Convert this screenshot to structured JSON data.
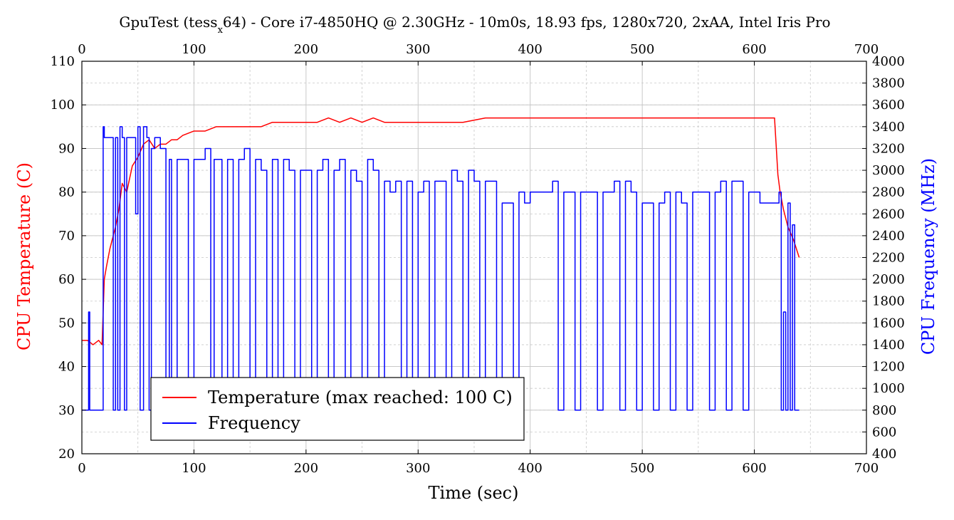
{
  "chart_data": {
    "type": "line",
    "title": "GpuTest (tessx64) - Core i7-4850HQ @ 2.30GHz - 10m0s, 18.93 fps, 1280x720, 2xAA, Intel Iris Pro",
    "title_parts": {
      "pre": "GpuTest (tess",
      "sub": "x",
      "post": "64) - Core i7-4850HQ @ 2.30GHz - 10m0s, 18.93 fps, 1280x720, 2xAA, Intel Iris Pro"
    },
    "xlabel": "Time (sec)",
    "ylabel_left": "CPU Temperature (C)",
    "ylabel_right": "CPU Frequency (MHz)",
    "xlim": [
      0,
      700
    ],
    "ylim_left": [
      20,
      110
    ],
    "ylim_right": [
      400,
      4000
    ],
    "x_ticks": [
      0,
      100,
      200,
      300,
      400,
      500,
      600,
      700
    ],
    "x_ticks_top": [
      0,
      100,
      200,
      300,
      400,
      500,
      600,
      700
    ],
    "y_ticks_left": [
      20,
      30,
      40,
      50,
      60,
      70,
      80,
      90,
      100,
      110
    ],
    "y_ticks_right": [
      400,
      600,
      800,
      1000,
      1200,
      1400,
      1600,
      1800,
      2000,
      2200,
      2400,
      2600,
      2800,
      3000,
      3200,
      3400,
      3600,
      3800,
      4000
    ],
    "grid": true,
    "legend_position": "bottom-left",
    "colors": {
      "temperature": "#ff0000",
      "frequency": "#0000ff",
      "grid": "#c8c8c8"
    },
    "series": [
      {
        "name": "Temperature (max reached: 100 C)",
        "axis": "left",
        "x": [
          0,
          5,
          10,
          15,
          18,
          20,
          22,
          25,
          28,
          30,
          33,
          36,
          40,
          45,
          50,
          55,
          60,
          65,
          70,
          75,
          80,
          85,
          90,
          100,
          110,
          120,
          130,
          140,
          150,
          160,
          170,
          180,
          190,
          200,
          210,
          220,
          230,
          240,
          250,
          260,
          270,
          280,
          290,
          300,
          320,
          340,
          360,
          380,
          400,
          420,
          440,
          460,
          480,
          500,
          520,
          540,
          560,
          580,
          600,
          610,
          618,
          621,
          623,
          626,
          630,
          635,
          640
        ],
        "y": [
          46,
          46,
          45,
          46,
          45,
          60,
          63,
          67,
          70,
          72,
          76,
          82,
          80,
          86,
          88,
          91,
          92,
          90,
          91,
          91,
          92,
          92,
          93,
          94,
          94,
          95,
          95,
          95,
          95,
          95,
          96,
          96,
          96,
          96,
          96,
          97,
          96,
          97,
          96,
          97,
          96,
          96,
          96,
          96,
          96,
          96,
          97,
          97,
          97,
          97,
          97,
          97,
          97,
          97,
          97,
          97,
          97,
          97,
          97,
          97,
          97,
          84,
          80,
          76,
          72,
          69,
          65
        ]
      },
      {
        "name": "Frequency",
        "axis": "right",
        "x": [
          0,
          5,
          6,
          7,
          8,
          18,
          19,
          20,
          25,
          28,
          30,
          32,
          34,
          36,
          38,
          40,
          42,
          45,
          48,
          50,
          52,
          55,
          58,
          60,
          62,
          65,
          70,
          75,
          78,
          80,
          85,
          90,
          95,
          100,
          105,
          110,
          115,
          118,
          120,
          125,
          130,
          135,
          140,
          145,
          150,
          155,
          160,
          165,
          170,
          175,
          180,
          185,
          190,
          195,
          200,
          205,
          210,
          215,
          220,
          225,
          230,
          235,
          240,
          245,
          250,
          255,
          260,
          265,
          270,
          275,
          280,
          285,
          290,
          295,
          300,
          305,
          310,
          315,
          320,
          325,
          330,
          335,
          340,
          345,
          350,
          355,
          360,
          365,
          370,
          375,
          380,
          385,
          390,
          395,
          400,
          405,
          410,
          415,
          420,
          425,
          430,
          435,
          440,
          445,
          450,
          455,
          460,
          465,
          470,
          475,
          480,
          485,
          490,
          495,
          500,
          505,
          510,
          515,
          520,
          525,
          530,
          535,
          540,
          545,
          550,
          555,
          560,
          565,
          570,
          575,
          580,
          585,
          590,
          595,
          600,
          605,
          610,
          615,
          620,
          622,
          624,
          626,
          628,
          630,
          632,
          634,
          636,
          640
        ],
        "y": [
          800,
          800,
          1700,
          800,
          800,
          800,
          3400,
          3300,
          3300,
          800,
          3300,
          800,
          3400,
          3300,
          800,
          3300,
          3300,
          3300,
          2600,
          3400,
          800,
          3400,
          3300,
          800,
          3200,
          3300,
          3200,
          800,
          3100,
          800,
          3100,
          3100,
          800,
          3100,
          3100,
          3200,
          800,
          3100,
          3100,
          800,
          3100,
          800,
          3100,
          3200,
          800,
          3100,
          3000,
          800,
          3100,
          800,
          3100,
          3000,
          800,
          3000,
          3000,
          800,
          3000,
          3100,
          800,
          3000,
          3100,
          800,
          3000,
          2900,
          800,
          3100,
          3000,
          800,
          2900,
          2800,
          2900,
          800,
          2900,
          800,
          2800,
          2900,
          800,
          2900,
          2900,
          800,
          3000,
          2900,
          800,
          3000,
          2900,
          800,
          2900,
          2900,
          800,
          2700,
          2700,
          800,
          2800,
          2700,
          2800,
          2800,
          2800,
          2800,
          2900,
          800,
          2800,
          2800,
          800,
          2800,
          2800,
          2800,
          800,
          2800,
          2800,
          2900,
          800,
          2900,
          2800,
          800,
          2700,
          2700,
          800,
          2700,
          2800,
          800,
          2800,
          2700,
          800,
          2800,
          2800,
          2800,
          800,
          2800,
          2900,
          800,
          2900,
          2900,
          800,
          2800,
          2800,
          2700,
          2700,
          2700,
          2700,
          2800,
          800,
          1700,
          800,
          2700,
          800,
          2500,
          800,
          800
        ]
      }
    ]
  }
}
